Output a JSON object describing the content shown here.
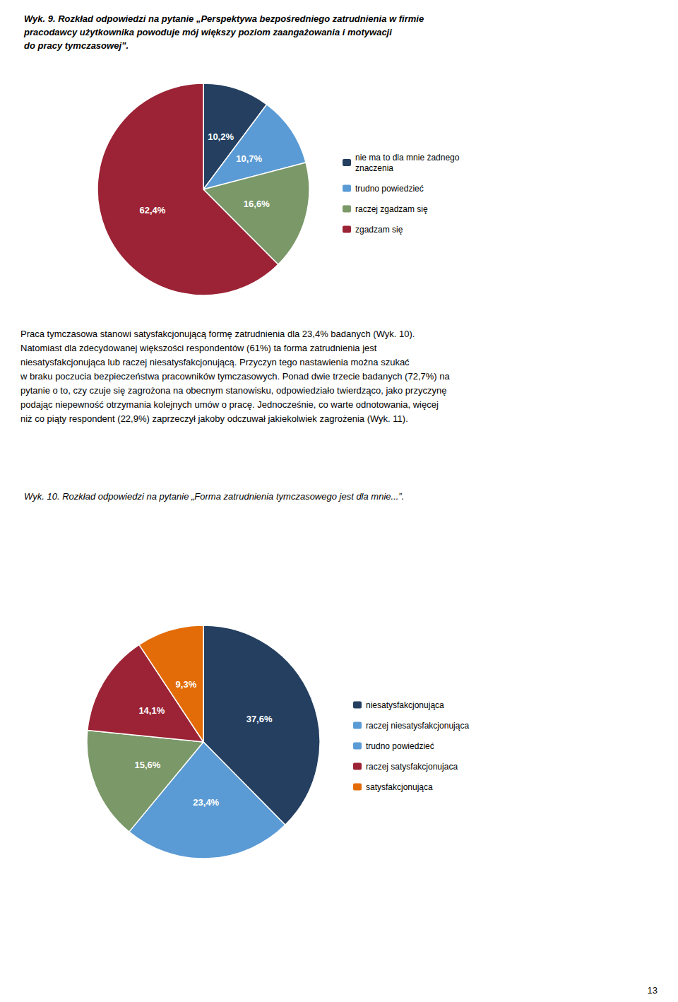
{
  "chart_data": [
    {
      "type": "pie",
      "title": "Wyk. 9. Rozkład odpowiedzi na pytanie „Perspektywa bezpośredniego zatrudnienia w firmie\npracodawcy użytkownika powoduje mój większy poziom zaangażowania i motywacji\ndo pracy tymczasowej”.",
      "categories": [
        "nie ma to dla mnie żadnego\nznaczenia",
        "trudno powiedzieć",
        "raczej zgadzam się",
        "zgadzam się"
      ],
      "values": [
        10.2,
        10.7,
        16.6,
        62.4
      ],
      "value_labels": [
        "10,2%",
        "10,7%",
        "16,6%",
        "62,4%"
      ],
      "colors": [
        "#243f60",
        "#5b9bd5",
        "#7a9868",
        "#9b2335"
      ],
      "data_labels": true,
      "legend": "right",
      "annotations": [
        "Praca tymczasowa stanowi satysfakcjonującą formę zatrudnienia dla 23,4% badanych (Wyk. 10).\nNatomiast dla zdecydowanej większości respondentów (61%) ta forma zatrudnienia jest\nniesatysfakcjonująca lub raczej niesatysfakcjonującą. Przyczyn tego nastawienia można szukać\nw braku poczucia bezpieczeństwa pracowników tymczasowych. Ponad dwie trzecie badanych (72,7%) na\npytanie o to, czy czuje się zagrożona na obecnym stanowisku, odpowiedziało twierdząco, jako przyczynę\npodając niepewność otrzymania kolejnych umów o pracę. Jednocześnie, co warte odnotowania, więcej\nniż co piąty respondent (22,9%) zaprzeczył jakoby odczuwał jakiekolwiek zagrożenia (Wyk. 11)."
      ]
    },
    {
      "type": "pie",
      "title": "Wyk. 10. Rozkład odpowiedzi na pytanie „Forma zatrudnienia tymczasowego jest dla mnie...”.",
      "categories": [
        "niesatysfakcjonująca",
        "raczej niesatysfakcjonująca",
        "trudno powiedzieć",
        "raczej satysfakcjonujaca",
        "satysfakcjonująca"
      ],
      "values": [
        37.6,
        23.4,
        15.6,
        14.1,
        9.3
      ],
      "value_labels": [
        "37,6%",
        "23,4%",
        "15,6%",
        "14,1%",
        "9,3%"
      ],
      "colors": [
        "#243f60",
        "#5b9bd5",
        "#7a9868",
        "#9b2335",
        "#e36c09"
      ],
      "data_labels": true,
      "legend": "right",
      "annotations": [
        "13"
      ]
    }
  ]
}
